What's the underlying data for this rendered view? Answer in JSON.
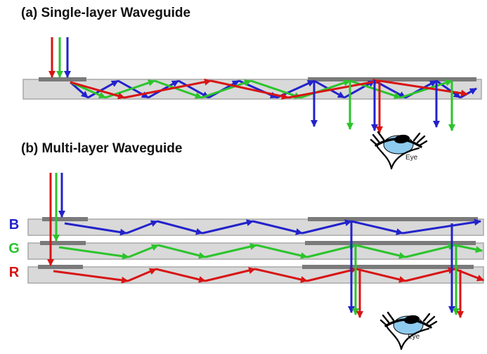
{
  "panel_a": {
    "title": "(a) Single-layer Waveguide",
    "eye_label": "Eye"
  },
  "panel_b": {
    "title": "(b) Multi-layer Waveguide",
    "layers": [
      {
        "label": "B",
        "color_name": "blue"
      },
      {
        "label": "G",
        "color_name": "green"
      },
      {
        "label": "R",
        "color_name": "red"
      }
    ],
    "eye_label": "Eye"
  },
  "colors": {
    "red": "#d81414",
    "green": "#2bc42b",
    "blue": "#2222cc",
    "bar_fill": "#d9d9d9",
    "bar_border": "#a8a8a8",
    "grating": "#7a7a7a",
    "text": "#111111",
    "iris": "#8ecbee",
    "background": "#ffffff"
  }
}
